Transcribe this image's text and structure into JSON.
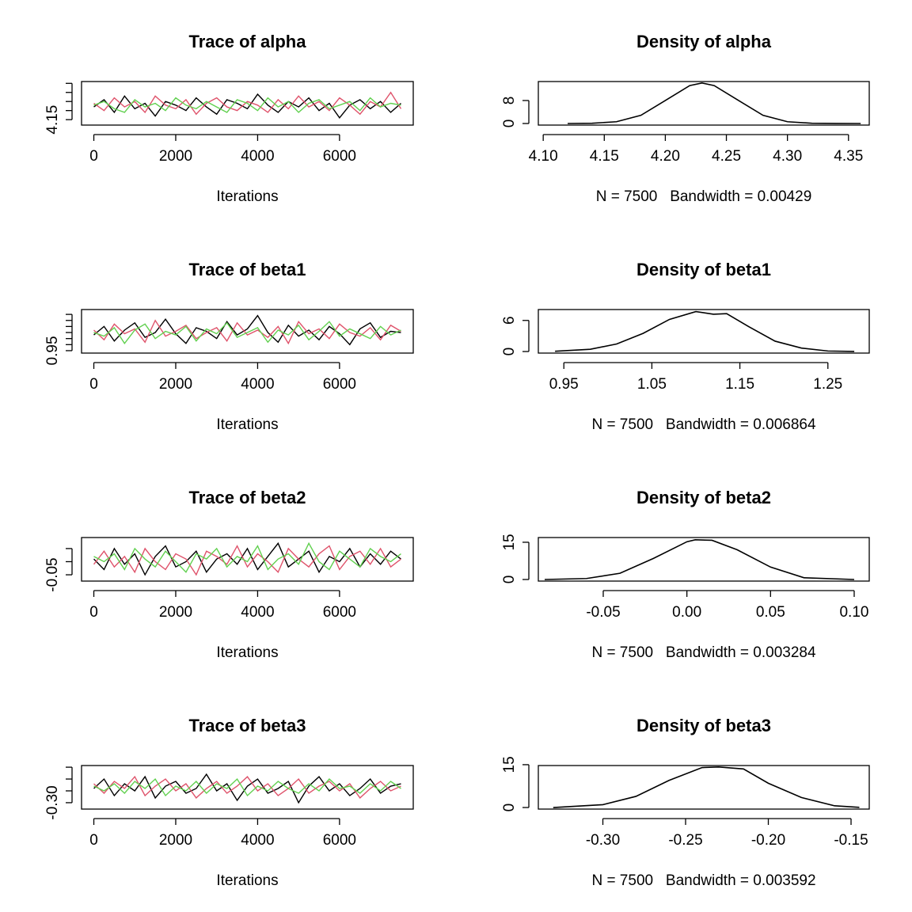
{
  "chart_data": [
    {
      "type": "line",
      "title": "Trace of alpha",
      "xlabel": "Iterations",
      "x": [
        0,
        250,
        500,
        750,
        1000,
        1250,
        1500,
        1750,
        2000,
        2250,
        2500,
        2750,
        3000,
        3250,
        3500,
        3750,
        4000,
        4250,
        4500,
        4750,
        5000,
        5250,
        5500,
        5750,
        6000,
        6250,
        6500,
        6750,
        7000,
        7250,
        7500
      ],
      "series": [
        {
          "color": "#000000",
          "values": [
            4.22,
            4.26,
            4.19,
            4.28,
            4.21,
            4.24,
            4.17,
            4.25,
            4.23,
            4.2,
            4.27,
            4.22,
            4.18,
            4.26,
            4.24,
            4.21,
            4.29,
            4.23,
            4.19,
            4.25,
            4.22,
            4.27,
            4.2,
            4.24,
            4.16,
            4.23,
            4.26,
            4.21,
            4.25,
            4.19,
            4.24
          ]
        },
        {
          "color": "#DF536B",
          "values": [
            4.24,
            4.2,
            4.27,
            4.22,
            4.25,
            4.19,
            4.28,
            4.23,
            4.21,
            4.26,
            4.18,
            4.24,
            4.27,
            4.22,
            4.2,
            4.25,
            4.23,
            4.19,
            4.26,
            4.21,
            4.28,
            4.22,
            4.25,
            4.2,
            4.27,
            4.23,
            4.18,
            4.25,
            4.22,
            4.3,
            4.21
          ]
        },
        {
          "color": "#61D04F",
          "values": [
            4.23,
            4.25,
            4.21,
            4.19,
            4.26,
            4.22,
            4.24,
            4.2,
            4.27,
            4.23,
            4.21,
            4.25,
            4.22,
            4.19,
            4.26,
            4.24,
            4.2,
            4.27,
            4.22,
            4.25,
            4.19,
            4.24,
            4.26,
            4.21,
            4.23,
            4.25,
            4.2,
            4.27,
            4.22,
            4.24,
            4.23
          ]
        }
      ],
      "xlim": [
        -300,
        7800
      ],
      "xticks": [
        0,
        2000,
        4000,
        6000
      ],
      "ylim": [
        4.12,
        4.36
      ],
      "yticks": [
        4.15,
        {
          "value": 4.2,
          "label": null
        },
        {
          "value": 4.25,
          "label": null
        },
        {
          "value": 4.3,
          "label": null
        },
        {
          "value": 4.35,
          "label": null
        }
      ]
    },
    {
      "type": "line",
      "title": "Density of alpha",
      "xlabel": "N = 7500   Bandwidth = 0.00429",
      "color": "#000000",
      "x": [
        4.12,
        4.14,
        4.16,
        4.18,
        4.2,
        4.22,
        4.23,
        4.24,
        4.26,
        4.28,
        4.3,
        4.32,
        4.34,
        4.36
      ],
      "values": [
        0,
        0.08,
        0.62,
        2.84,
        8.0,
        13.2,
        14.1,
        13.2,
        8.0,
        2.84,
        0.62,
        0.08,
        0.01,
        0
      ],
      "xlim": [
        4.096,
        4.367
      ],
      "xticks": [
        {
          "value": 4.1,
          "label": "4.10"
        },
        4.15,
        {
          "value": 4.2,
          "label": "4.20"
        },
        4.25,
        {
          "value": 4.3,
          "label": "4.30"
        },
        4.35
      ],
      "ylim": [
        -0.55,
        14.6
      ],
      "yticks": [
        0,
        8
      ]
    },
    {
      "type": "line",
      "title": "Trace of beta1",
      "xlabel": "Iterations",
      "x": [
        0,
        250,
        500,
        750,
        1000,
        1250,
        1500,
        1750,
        2000,
        2250,
        2500,
        2750,
        3000,
        3250,
        3500,
        3750,
        4000,
        4250,
        4500,
        4750,
        5000,
        5250,
        5500,
        5750,
        6000,
        6250,
        6500,
        6750,
        7000,
        7250,
        7500
      ],
      "series": [
        {
          "color": "#000000",
          "values": [
            1.08,
            1.15,
            1.03,
            1.12,
            1.18,
            1.06,
            1.1,
            1.21,
            1.09,
            1.01,
            1.14,
            1.11,
            1.05,
            1.19,
            1.08,
            1.13,
            1.24,
            1.1,
            1.02,
            1.16,
            1.07,
            1.12,
            1.04,
            1.15,
            1.09,
            1.0,
            1.13,
            1.18,
            1.06,
            1.11,
            1.1
          ]
        },
        {
          "color": "#DF536B",
          "values": [
            1.12,
            1.04,
            1.17,
            1.09,
            1.13,
            1.02,
            1.2,
            1.07,
            1.11,
            1.16,
            1.05,
            1.1,
            1.14,
            1.03,
            1.18,
            1.08,
            1.12,
            1.06,
            1.15,
            1.01,
            1.19,
            1.09,
            1.13,
            1.05,
            1.17,
            1.1,
            1.07,
            1.14,
            1.04,
            1.16,
            1.11
          ]
        },
        {
          "color": "#61D04F",
          "values": [
            1.1,
            1.07,
            1.14,
            1.01,
            1.12,
            1.17,
            1.05,
            1.11,
            1.08,
            1.15,
            1.03,
            1.13,
            1.09,
            1.18,
            1.06,
            1.1,
            1.14,
            1.02,
            1.12,
            1.08,
            1.16,
            1.04,
            1.11,
            1.19,
            1.07,
            1.13,
            1.09,
            1.05,
            1.15,
            1.08,
            1.12
          ]
        }
      ],
      "xlim": [
        -300,
        7800
      ],
      "xticks": [
        0,
        2000,
        4000,
        6000
      ],
      "ylim": [
        0.93,
        1.29
      ],
      "yticks": [
        0.95,
        {
          "value": 1.0,
          "label": null
        },
        {
          "value": 1.05,
          "label": null
        },
        {
          "value": 1.1,
          "label": null
        },
        {
          "value": 1.15,
          "label": null
        },
        {
          "value": 1.2,
          "label": null
        },
        {
          "value": 1.25,
          "label": null
        }
      ]
    },
    {
      "type": "line",
      "title": "Density of beta1",
      "xlabel": "N = 7500   Bandwidth = 0.006864",
      "color": "#000000",
      "x": [
        0.94,
        0.98,
        1.01,
        1.04,
        1.07,
        1.1,
        1.12,
        1.135,
        1.16,
        1.19,
        1.22,
        1.25,
        1.28
      ],
      "values": [
        0.05,
        0.43,
        1.45,
        3.5,
        6.2,
        7.7,
        7.2,
        7.3,
        4.8,
        2.0,
        0.67,
        0.1,
        0.01
      ],
      "xlim": [
        0.921,
        1.297
      ],
      "xticks": [
        0.95,
        1.05,
        1.15,
        1.25
      ],
      "ylim": [
        -0.3,
        8.1
      ],
      "yticks": [
        0,
        6
      ]
    },
    {
      "type": "line",
      "title": "Trace of beta2",
      "xlabel": "Iterations",
      "x": [
        0,
        250,
        500,
        750,
        1000,
        1250,
        1500,
        1750,
        2000,
        2250,
        2500,
        2750,
        3000,
        3250,
        3500,
        3750,
        4000,
        4250,
        4500,
        4750,
        5000,
        5250,
        5500,
        5750,
        6000,
        6250,
        6500,
        6750,
        7000,
        7250,
        7500
      ],
      "series": [
        {
          "color": "#000000",
          "values": [
            0.01,
            -0.03,
            0.05,
            -0.01,
            0.03,
            -0.05,
            0.02,
            0.06,
            -0.02,
            0,
            0.04,
            -0.04,
            0.01,
            0.03,
            -0.01,
            0.05,
            -0.03,
            0.02,
            0.07,
            -0.02,
            0.01,
            0.04,
            -0.04,
            0.02,
            0,
            0.05,
            -0.02,
            0.03,
            -0.01,
            0.04,
            0.01
          ]
        },
        {
          "color": "#DF536B",
          "values": [
            -0.01,
            0.04,
            -0.02,
            0.02,
            -0.04,
            0.05,
            0,
            -0.03,
            0.03,
            0.01,
            -0.05,
            0.04,
            0.02,
            -0.01,
            0.06,
            -0.02,
            0.03,
            0,
            -0.04,
            0.05,
            0.01,
            -0.02,
            0.03,
            0.06,
            -0.03,
            0.02,
            0.04,
            -0.01,
            0.05,
            -0.02,
            0.01
          ]
        },
        {
          "color": "#61D04F",
          "values": [
            0.02,
            0,
            0.03,
            -0.03,
            0.05,
            0.01,
            -0.02,
            0.04,
            0,
            -0.04,
            0.03,
            0.01,
            0.05,
            -0.02,
            0.02,
            0,
            0.06,
            -0.03,
            0.01,
            0.03,
            -0.01,
            0.07,
            0,
            -0.03,
            0.04,
            0.01,
            -0.02,
            0.05,
            0.02,
            0,
            0.03
          ]
        }
      ],
      "xlim": [
        -300,
        7800
      ],
      "xticks": [
        0,
        2000,
        4000,
        6000
      ],
      "ylim": [
        -0.074,
        0.092
      ],
      "yticks": [
        -0.05,
        {
          "value": 0,
          "label": null
        },
        {
          "value": 0.05,
          "label": null
        }
      ]
    },
    {
      "type": "line",
      "title": "Density of beta2",
      "xlabel": "N = 7500   Bandwidth = 0.003284",
      "color": "#000000",
      "x": [
        -0.085,
        -0.06,
        -0.04,
        -0.02,
        0,
        0.005,
        0.015,
        0.03,
        0.05,
        0.07,
        0.1
      ],
      "values": [
        0,
        0.4,
        2.5,
        8.5,
        15.2,
        16,
        15.8,
        12,
        5.0,
        0.7,
        0
      ],
      "xlim": [
        -0.0888,
        0.109
      ],
      "xticks": [
        -0.05,
        {
          "value": 0,
          "label": "0.00"
        },
        0.05,
        {
          "value": 0.1,
          "label": "0.10"
        }
      ],
      "ylim": [
        -0.64,
        16.9
      ],
      "yticks": [
        0,
        15
      ]
    },
    {
      "type": "line",
      "title": "Trace of beta3",
      "xlabel": "Iterations",
      "x": [
        0,
        250,
        500,
        750,
        1000,
        1250,
        1500,
        1750,
        2000,
        2250,
        2500,
        2750,
        3000,
        3250,
        3500,
        3750,
        4000,
        4250,
        4500,
        4750,
        5000,
        5250,
        5500,
        5750,
        6000,
        6250,
        6500,
        6750,
        7000,
        7250,
        7500
      ],
      "series": [
        {
          "color": "#000000",
          "values": [
            -0.24,
            -0.2,
            -0.27,
            -0.22,
            -0.25,
            -0.19,
            -0.28,
            -0.23,
            -0.21,
            -0.26,
            -0.24,
            -0.18,
            -0.25,
            -0.22,
            -0.29,
            -0.23,
            -0.2,
            -0.26,
            -0.24,
            -0.21,
            -0.3,
            -0.23,
            -0.19,
            -0.25,
            -0.22,
            -0.27,
            -0.24,
            -0.2,
            -0.26,
            -0.23,
            -0.22
          ]
        },
        {
          "color": "#DF536B",
          "values": [
            -0.22,
            -0.26,
            -0.21,
            -0.24,
            -0.19,
            -0.27,
            -0.23,
            -0.2,
            -0.25,
            -0.22,
            -0.28,
            -0.24,
            -0.21,
            -0.26,
            -0.23,
            -0.19,
            -0.25,
            -0.22,
            -0.27,
            -0.24,
            -0.2,
            -0.26,
            -0.23,
            -0.21,
            -0.25,
            -0.22,
            -0.28,
            -0.24,
            -0.21,
            -0.25,
            -0.23
          ]
        },
        {
          "color": "#61D04F",
          "values": [
            -0.23,
            -0.25,
            -0.22,
            -0.26,
            -0.21,
            -0.24,
            -0.2,
            -0.27,
            -0.23,
            -0.25,
            -0.21,
            -0.26,
            -0.22,
            -0.24,
            -0.2,
            -0.27,
            -0.23,
            -0.25,
            -0.21,
            -0.24,
            -0.26,
            -0.22,
            -0.25,
            -0.2,
            -0.24,
            -0.23,
            -0.26,
            -0.22,
            -0.25,
            -0.21,
            -0.24
          ]
        }
      ],
      "xlim": [
        -300,
        7800
      ],
      "xticks": [
        0,
        2000,
        4000,
        6000
      ],
      "ylim": [
        -0.327,
        -0.143
      ],
      "yticks": [
        {
          "value": -0.3,
          "label": "-0.30"
        },
        {
          "value": -0.25,
          "label": null
        },
        {
          "value": -0.2,
          "label": null
        },
        {
          "value": -0.15,
          "label": null
        }
      ]
    },
    {
      "type": "line",
      "title": "Density of beta3",
      "xlabel": "N = 7500   Bandwidth = 0.003592",
      "color": "#000000",
      "x": [
        -0.33,
        -0.3,
        -0.28,
        -0.26,
        -0.24,
        -0.23,
        -0.215,
        -0.2,
        -0.18,
        -0.16,
        -0.145
      ],
      "values": [
        0,
        1.0,
        3.9,
        9.5,
        14,
        14.2,
        13.5,
        8.5,
        3.5,
        0.6,
        0.05
      ],
      "xlim": [
        -0.339,
        -0.139
      ],
      "xticks": [
        {
          "value": -0.3,
          "label": "-0.30"
        },
        -0.25,
        {
          "value": -0.2,
          "label": "-0.20"
        },
        -0.15
      ],
      "ylim": [
        -0.55,
        14.7
      ],
      "yticks": [
        0,
        15
      ]
    }
  ]
}
